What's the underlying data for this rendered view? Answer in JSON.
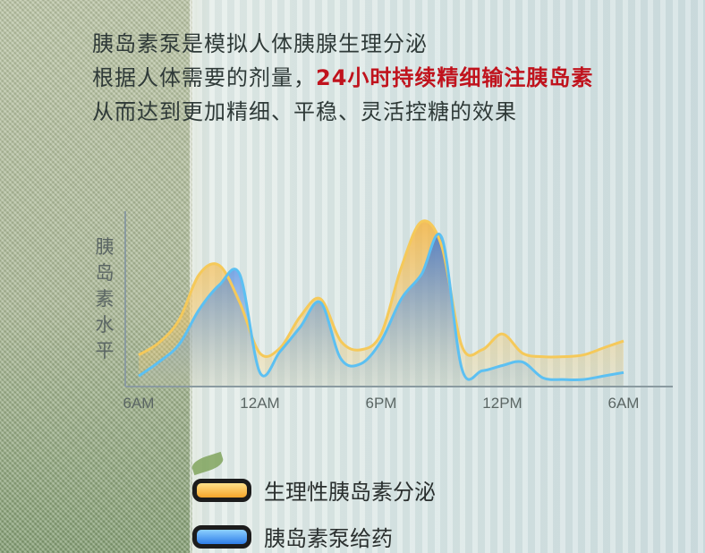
{
  "headline": {
    "line1": "胰岛素泵是模拟人体胰腺生理分泌",
    "line2_prefix": "根据人体需要的剂量，",
    "line2_highlight": "24小时持续精细输注胰岛素",
    "line3": "从而达到更加精细、平稳、灵活控糖的效果"
  },
  "colors": {
    "highlight": "#c0131d",
    "physiological": "#f5b53a",
    "pump": "#2f7ee8",
    "axis": "#8a9aa0"
  },
  "chart_data": {
    "type": "area",
    "ylabel": "胰岛素水平",
    "x_ticks": [
      "6AM",
      "12AM",
      "6PM",
      "12PM",
      "6AM"
    ],
    "x": [
      0,
      1,
      2,
      3,
      4,
      5,
      6,
      7,
      8,
      9,
      10,
      11,
      12,
      13,
      14,
      15,
      16,
      17,
      18,
      19,
      20,
      21,
      22,
      23,
      24
    ],
    "ylim": [
      0,
      10
    ],
    "grid": false,
    "legend_position": "bottom-left",
    "series": [
      {
        "name": "生理性胰岛素分泌",
        "values": [
          1.8,
          2.5,
          3.8,
          6.4,
          6.9,
          4.8,
          1.9,
          2.2,
          4.0,
          5.0,
          2.6,
          2.1,
          3.0,
          6.8,
          9.4,
          8.0,
          2.3,
          2.1,
          3.0,
          1.9,
          1.7,
          1.7,
          1.8,
          2.2,
          2.6
        ]
      },
      {
        "name": "胰岛素泵给药",
        "values": [
          0.6,
          1.4,
          2.4,
          4.4,
          5.8,
          6.4,
          0.8,
          2.0,
          3.4,
          4.8,
          1.6,
          1.3,
          2.6,
          5.0,
          6.4,
          8.5,
          1.0,
          0.9,
          1.2,
          1.4,
          0.5,
          0.4,
          0.4,
          0.6,
          0.8
        ]
      }
    ]
  }
}
